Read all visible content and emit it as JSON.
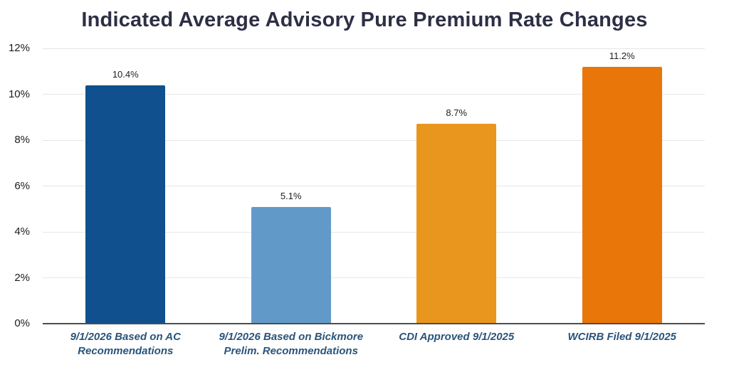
{
  "chart_data": {
    "type": "bar",
    "title": "Indicated Average Advisory Pure Premium Rate Changes",
    "categories": [
      "9/1/2026 Based on AC Recommendations",
      "9/1/2026 Based on Bickmore Prelim. Recommendations",
      "CDI Approved 9/1/2025",
      "WCIRB Filed 9/1/2025"
    ],
    "values": [
      10.4,
      5.1,
      8.7,
      11.2
    ],
    "value_labels": [
      "10.4%",
      "5.1%",
      "8.7%",
      "11.2%"
    ],
    "xlabel": "",
    "ylabel": "",
    "ylim": [
      0,
      12
    ],
    "ytick_step": 2,
    "ytick_labels": [
      "0%",
      "2%",
      "4%",
      "6%",
      "8%",
      "10%",
      "12%"
    ],
    "grid": true,
    "legend": false,
    "colors": {
      "bars": [
        "#10508E",
        "#619AC8",
        "#E8961D",
        "#E87608"
      ],
      "title": "#2D2F44",
      "category_labels": "#2A547A",
      "value_labels": "#212121",
      "tick_labels": "#1A1A1A",
      "gridline": "#E6E6E6",
      "axis_line": "#4D4D4D",
      "background": "#FFFFFF"
    }
  }
}
